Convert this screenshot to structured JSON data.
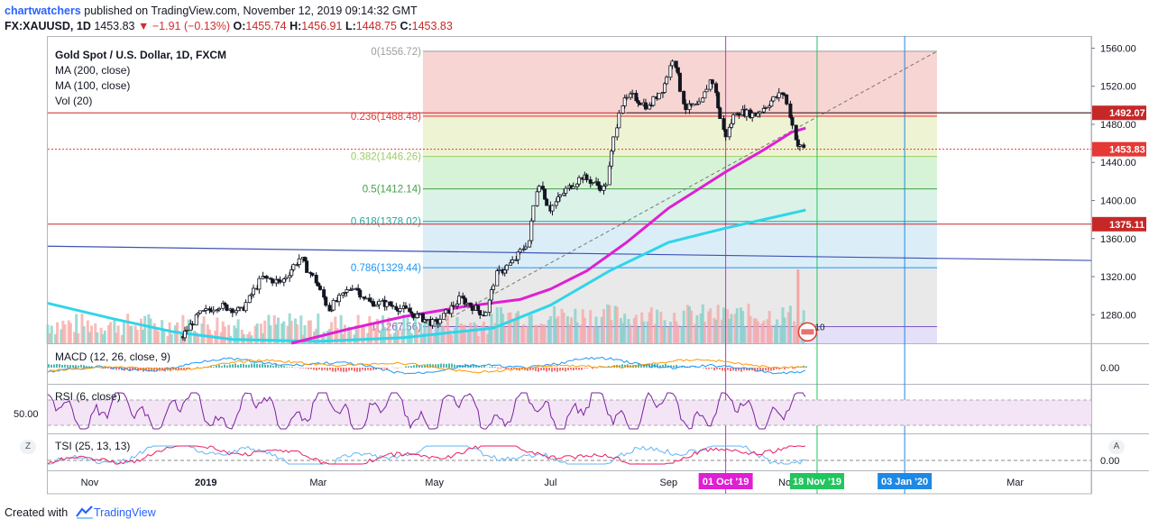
{
  "header": {
    "author": "chartwatchers",
    "published_text": " published on TradingView.com, November 12, 2019 09:14:32 GMT",
    "symbol": "FX:XAUUSD, 1D",
    "last_price": "1453.83",
    "change": "−1.91 (−0.13%)",
    "open_label": "O:",
    "open": "1455.74",
    "high_label": "H:",
    "high": "1456.91",
    "low_label": "L:",
    "low": "1448.75",
    "close_label": "C:",
    "close": "1453.83"
  },
  "legend": {
    "title": "Gold Spot / U.S. Dollar, 1D, FXCM",
    "ma200": "MA (200, close)",
    "ma100": "MA (100, close)",
    "vol": "Vol (20)"
  },
  "colors": {
    "up": "#26a69a",
    "down": "#ef5350",
    "candle_body_up": "#ffffff",
    "candle_edge": "#131722",
    "ma200": "#e01fd4",
    "ma100": "#30d5e8",
    "price_line": "#e53935",
    "hline_red": "#c62828",
    "trend_blue": "#3f51b5",
    "macd": "#2196f3",
    "signal": "#ff9800",
    "rsi": "#7b1fa2",
    "tsi": "#64b5f6",
    "tsi_signal": "#e91e63"
  },
  "footer": {
    "created_with": "Created with",
    "brand": "TradingView"
  },
  "chart_data": [
    {
      "type": "line",
      "name": "main-price-chart",
      "title": "Gold Spot / U.S. Dollar, 1D, FXCM",
      "y_ticks": [
        1280,
        1320,
        1360,
        1400,
        1440,
        1480,
        1520,
        1560
      ],
      "y_tick_labels": [
        "1280.00",
        "1320.00",
        "1360.00",
        "1400.00",
        "1440.00",
        "1480.00",
        "1520.00",
        "1560.00"
      ],
      "ylim": [
        1250,
        1568
      ],
      "x_tick_labels": [
        "Nov",
        "2019",
        "Mar",
        "May",
        "Jul",
        "Sep",
        "No",
        "Mar"
      ],
      "x_tick_dates": [
        "2018-11-01",
        "2019-01-01",
        "2019-03-01",
        "2019-05-01",
        "2019-07-01",
        "2019-09-01",
        "2019-11-01",
        "2020-03-01"
      ],
      "x_start": "2018-10-10",
      "x_end": "2020-04-10",
      "series": [
        {
          "name": "Close",
          "points": [
            [
              "2018-12-20",
              1257
            ],
            [
              "2018-12-28",
              1279
            ],
            [
              "2019-01-08",
              1290
            ],
            [
              "2019-01-20",
              1284
            ],
            [
              "2019-01-31",
              1319
            ],
            [
              "2019-02-10",
              1314
            ],
            [
              "2019-02-20",
              1340
            ],
            [
              "2019-03-01",
              1312
            ],
            [
              "2019-03-07",
              1286
            ],
            [
              "2019-03-20",
              1311
            ],
            [
              "2019-03-28",
              1293
            ],
            [
              "2019-04-05",
              1292
            ],
            [
              "2019-04-15",
              1286
            ],
            [
              "2019-04-25",
              1276
            ],
            [
              "2019-05-02",
              1270
            ],
            [
              "2019-05-15",
              1297
            ],
            [
              "2019-05-28",
              1280
            ],
            [
              "2019-06-03",
              1322
            ],
            [
              "2019-06-12",
              1336
            ],
            [
              "2019-06-20",
              1358
            ],
            [
              "2019-06-25",
              1422
            ],
            [
              "2019-07-01",
              1391
            ],
            [
              "2019-07-10",
              1412
            ],
            [
              "2019-07-18",
              1425
            ],
            [
              "2019-07-30",
              1412
            ],
            [
              "2019-08-07",
              1500
            ],
            [
              "2019-08-13",
              1510
            ],
            [
              "2019-08-22",
              1498
            ],
            [
              "2019-08-30",
              1520
            ],
            [
              "2019-09-04",
              1552
            ],
            [
              "2019-09-10",
              1497
            ],
            [
              "2019-09-18",
              1500
            ],
            [
              "2019-09-24",
              1530
            ],
            [
              "2019-10-01",
              1466
            ],
            [
              "2019-10-07",
              1494
            ],
            [
              "2019-10-17",
              1490
            ],
            [
              "2019-10-25",
              1504
            ],
            [
              "2019-11-01",
              1514
            ],
            [
              "2019-11-05",
              1484
            ],
            [
              "2019-11-08",
              1458
            ],
            [
              "2019-11-12",
              1453.83
            ]
          ]
        },
        {
          "name": "MA 200",
          "points": [
            [
              "2019-02-15",
              1250
            ],
            [
              "2019-03-15",
              1264
            ],
            [
              "2019-04-15",
              1278
            ],
            [
              "2019-05-15",
              1288
            ],
            [
              "2019-06-15",
              1296
            ],
            [
              "2019-07-01",
              1307
            ],
            [
              "2019-07-20",
              1326
            ],
            [
              "2019-08-10",
              1356
            ],
            [
              "2019-09-01",
              1392
            ],
            [
              "2019-10-01",
              1430
            ],
            [
              "2019-10-20",
              1452
            ],
            [
              "2019-11-05",
              1472
            ],
            [
              "2019-11-12",
              1476
            ]
          ]
        },
        {
          "name": "MA 100",
          "points": [
            [
              "2018-10-10",
              1292
            ],
            [
              "2018-11-15",
              1275
            ],
            [
              "2018-12-15",
              1262
            ],
            [
              "2019-01-15",
              1254
            ],
            [
              "2019-03-01",
              1252
            ],
            [
              "2019-04-15",
              1256
            ],
            [
              "2019-06-01",
              1266
            ],
            [
              "2019-07-01",
              1290
            ],
            [
              "2019-08-01",
              1326
            ],
            [
              "2019-09-01",
              1356
            ],
            [
              "2019-10-01",
              1371
            ],
            [
              "2019-11-01",
              1385
            ],
            [
              "2019-11-12",
              1390
            ]
          ]
        }
      ],
      "fib_levels": [
        {
          "ratio": "0",
          "price": 1556.72,
          "label": "0(1556.72)"
        },
        {
          "ratio": "0.236",
          "price": 1488.48,
          "label": "0.236(1488.48)"
        },
        {
          "ratio": "0.382",
          "price": 1446.26,
          "label": "0.382(1446.26)"
        },
        {
          "ratio": "0.5",
          "price": 1412.14,
          "label": "0.5(1412.14)"
        },
        {
          "ratio": "0.618",
          "price": 1378.02,
          "label": "0.618(1378.02)"
        },
        {
          "ratio": "0.786",
          "price": 1329.44,
          "label": "0.786(1329.44)"
        },
        {
          "ratio": "1",
          "price": 1267.56,
          "label": "1(1267.56)"
        }
      ],
      "fib_start": "2019-04-25",
      "fib_end": "2020-01-20",
      "price_labels": [
        {
          "value": 1492.07,
          "label": "1492.07",
          "color": "#c62828"
        },
        {
          "value": 1453.83,
          "label": "1453.83",
          "color": "#e53935"
        },
        {
          "value": 1375.11,
          "label": "1375.11",
          "color": "#c62828"
        }
      ],
      "date_markers": [
        {
          "date": "2019-10-01",
          "label": "01 Oct '19",
          "color": "#e01fd4"
        },
        {
          "date": "2019-11-18",
          "label": "18 Nov '19",
          "color": "#22c55e"
        },
        {
          "date": "2020-01-03",
          "label": "03 Jan '20",
          "color": "#1e88e5"
        }
      ]
    },
    {
      "type": "line",
      "name": "macd",
      "title": "MACD (12, 26, close, 9)",
      "y_tick_labels": [
        "0.00"
      ]
    },
    {
      "type": "line",
      "name": "rsi",
      "title": "RSI (6, close)",
      "y_tick_labels": [
        "50.00"
      ]
    },
    {
      "type": "line",
      "name": "tsi",
      "title": "TSI (25, 13, 13)",
      "y_tick_labels": [
        "0.00"
      ]
    }
  ],
  "fib_point_label": "10",
  "zoom_left": "Z",
  "zoom_right": "A"
}
